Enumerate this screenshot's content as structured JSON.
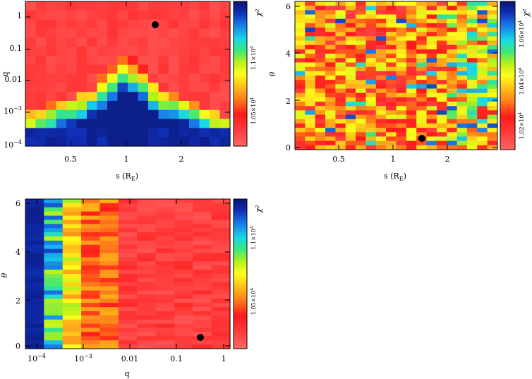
{
  "panels": [
    {
      "id": "s-q",
      "xlabel": "s (R",
      "xlabel_sub": "E",
      "xlabel_end": ")",
      "ylabel": "q",
      "xticks": [
        "0.5",
        "1",
        "2"
      ],
      "yticks": [
        "10^-4",
        "10^-3",
        "0.01",
        "0.1",
        "1"
      ],
      "colorbar_label": "χ²",
      "colorbar_ticks": [
        "1.1×10^4",
        "1.05×10^4"
      ],
      "best_fit": {
        "s": 1.5,
        "q": 0.3
      }
    },
    {
      "id": "s-theta",
      "xlabel": "s (R",
      "xlabel_sub": "E",
      "xlabel_end": ")",
      "ylabel": "θ",
      "xticks": [
        "0.5",
        "1",
        "2"
      ],
      "yticks": [
        "0",
        "2",
        "4",
        "6"
      ],
      "colorbar_label": "χ²",
      "colorbar_ticks": [
        "1.06×10^4",
        "1.04×10^4",
        "1.02×10^4"
      ],
      "best_fit": {
        "s": 1.5,
        "theta": 0.4
      }
    },
    {
      "id": "q-theta",
      "xlabel": "q",
      "xlabel_sub": "",
      "xlabel_end": "",
      "ylabel": "θ",
      "xticks": [
        "10^-4",
        "10^-3",
        "0.01",
        "0.1",
        "1"
      ],
      "yticks": [
        "0",
        "2",
        "4",
        "6"
      ],
      "colorbar_label": "χ²",
      "colorbar_ticks": [
        "1.1×10^4",
        "1.05×10^4"
      ],
      "best_fit": {
        "q": 0.3,
        "theta": 0.4
      }
    }
  ],
  "chart_data": [
    {
      "type": "heatmap",
      "xlabel": "s (RE)",
      "ylabel": "q",
      "colorbar": "χ²",
      "x_scale": "log",
      "y_scale": "log",
      "xlim": [
        0.3,
        4.0
      ],
      "ylim": [
        7e-05,
        1.3
      ],
      "colorbar_range": [
        10340,
        11350
      ],
      "best_fit": {
        "x": 1.5,
        "y": 0.3
      },
      "description_of_grid": "chi2 low (red) for q above ~0.003; rises to yellow/green near q~0.003 and deep blue for q below ~0.001, except a narrow green/yellow notch near s=1 extending to q~2e-4"
    },
    {
      "type": "heatmap",
      "xlabel": "s (RE)",
      "ylabel": "θ",
      "colorbar": "χ²",
      "x_scale": "log",
      "y_scale": "linear",
      "xlim": [
        0.3,
        4.0
      ],
      "ylim": [
        -0.1,
        6.3
      ],
      "colorbar_range": [
        10150,
        10700
      ],
      "best_fit": {
        "x": 1.5,
        "y": 0.4
      },
      "description_of_grid": "noisy mix of red/orange/yellow across all θ, more green/blue cells at large s"
    },
    {
      "type": "heatmap",
      "xlabel": "q",
      "ylabel": "θ",
      "colorbar": "χ²",
      "x_scale": "log",
      "y_scale": "linear",
      "xlim": [
        7e-05,
        1.3
      ],
      "ylim": [
        -0.1,
        6.3
      ],
      "colorbar_range": [
        10340,
        11350
      ],
      "best_fit": {
        "x": 0.3,
        "y": 0.4
      },
      "description_of_grid": "blue at q below 1e-4, green/yellow near 1e-3, orange/red above 0.005"
    }
  ]
}
